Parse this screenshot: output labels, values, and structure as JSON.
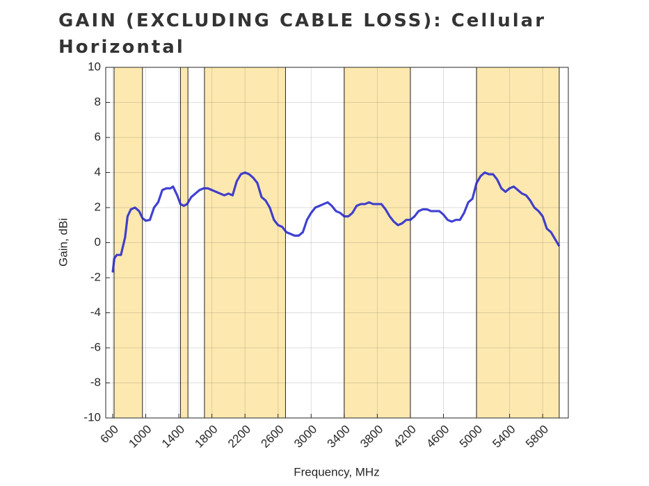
{
  "chart_data": {
    "type": "line",
    "title": "GAIN (EXCLUDING CABLE LOSS): Cellular Horizontal",
    "x_label": "Frequency, MHz",
    "y_label": "Gain, dBi",
    "xlim": [
      516,
      6110
    ],
    "ylim": [
      -10,
      10
    ],
    "xticks": [
      600,
      1000,
      1400,
      1800,
      2200,
      2600,
      3000,
      3400,
      3800,
      4200,
      4600,
      5000,
      5400,
      5800
    ],
    "yticks": [
      -10,
      -8,
      -6,
      -4,
      -2,
      0,
      2,
      4,
      6,
      8,
      10
    ],
    "grid": true,
    "shaded_ranges": [
      [
        617,
        960
      ],
      [
        1420,
        1510
      ],
      [
        1710,
        2690
      ],
      [
        3400,
        4200
      ],
      [
        5000,
        6000
      ]
    ],
    "shade_color": "#fde9b0",
    "x": [
      600,
      620,
      650,
      700,
      750,
      780,
      820,
      870,
      920,
      960,
      1000,
      1050,
      1100,
      1150,
      1200,
      1250,
      1300,
      1330,
      1380,
      1420,
      1460,
      1500,
      1550,
      1600,
      1650,
      1700,
      1750,
      1800,
      1850,
      1900,
      1950,
      2000,
      2050,
      2100,
      2150,
      2200,
      2250,
      2300,
      2350,
      2400,
      2450,
      2500,
      2550,
      2600,
      2650,
      2700,
      2750,
      2800,
      2850,
      2900,
      2950,
      3000,
      3050,
      3100,
      3150,
      3200,
      3250,
      3300,
      3350,
      3400,
      3450,
      3500,
      3550,
      3600,
      3650,
      3700,
      3750,
      3800,
      3850,
      3900,
      3950,
      4000,
      4050,
      4100,
      4150,
      4200,
      4250,
      4300,
      4350,
      4400,
      4450,
      4500,
      4550,
      4600,
      4650,
      4700,
      4750,
      4800,
      4850,
      4900,
      4950,
      5000,
      5050,
      5100,
      5150,
      5200,
      5250,
      5300,
      5350,
      5400,
      5450,
      5500,
      5550,
      5600,
      5650,
      5700,
      5750,
      5800,
      5850,
      5900,
      6000
    ],
    "series": [
      {
        "name": "Cellular Horizontal",
        "color": "#2626cc",
        "values": [
          -1.7,
          -0.9,
          -0.7,
          -0.7,
          0.3,
          1.5,
          1.9,
          2.0,
          1.8,
          1.4,
          1.25,
          1.3,
          2.0,
          2.3,
          3.0,
          3.1,
          3.1,
          3.2,
          2.7,
          2.2,
          2.1,
          2.2,
          2.6,
          2.8,
          3.0,
          3.1,
          3.1,
          3.0,
          2.9,
          2.8,
          2.7,
          2.8,
          2.7,
          3.5,
          3.9,
          4.0,
          3.9,
          3.7,
          3.4,
          2.6,
          2.4,
          2.0,
          1.3,
          1.0,
          0.9,
          0.6,
          0.5,
          0.4,
          0.4,
          0.6,
          1.3,
          1.7,
          2.0,
          2.1,
          2.2,
          2.3,
          2.1,
          1.8,
          1.7,
          1.5,
          1.5,
          1.7,
          2.1,
          2.2,
          2.2,
          2.3,
          2.2,
          2.2,
          2.2,
          1.9,
          1.5,
          1.2,
          1.0,
          1.1,
          1.3,
          1.3,
          1.5,
          1.8,
          1.9,
          1.9,
          1.8,
          1.8,
          1.8,
          1.6,
          1.3,
          1.2,
          1.3,
          1.3,
          1.7,
          2.3,
          2.5,
          3.4,
          3.8,
          4.0,
          3.9,
          3.9,
          3.6,
          3.1,
          2.9,
          3.1,
          3.2,
          3.0,
          2.8,
          2.7,
          2.4,
          2.0,
          1.8,
          1.5,
          0.8,
          0.6,
          -0.2
        ]
      }
    ]
  }
}
